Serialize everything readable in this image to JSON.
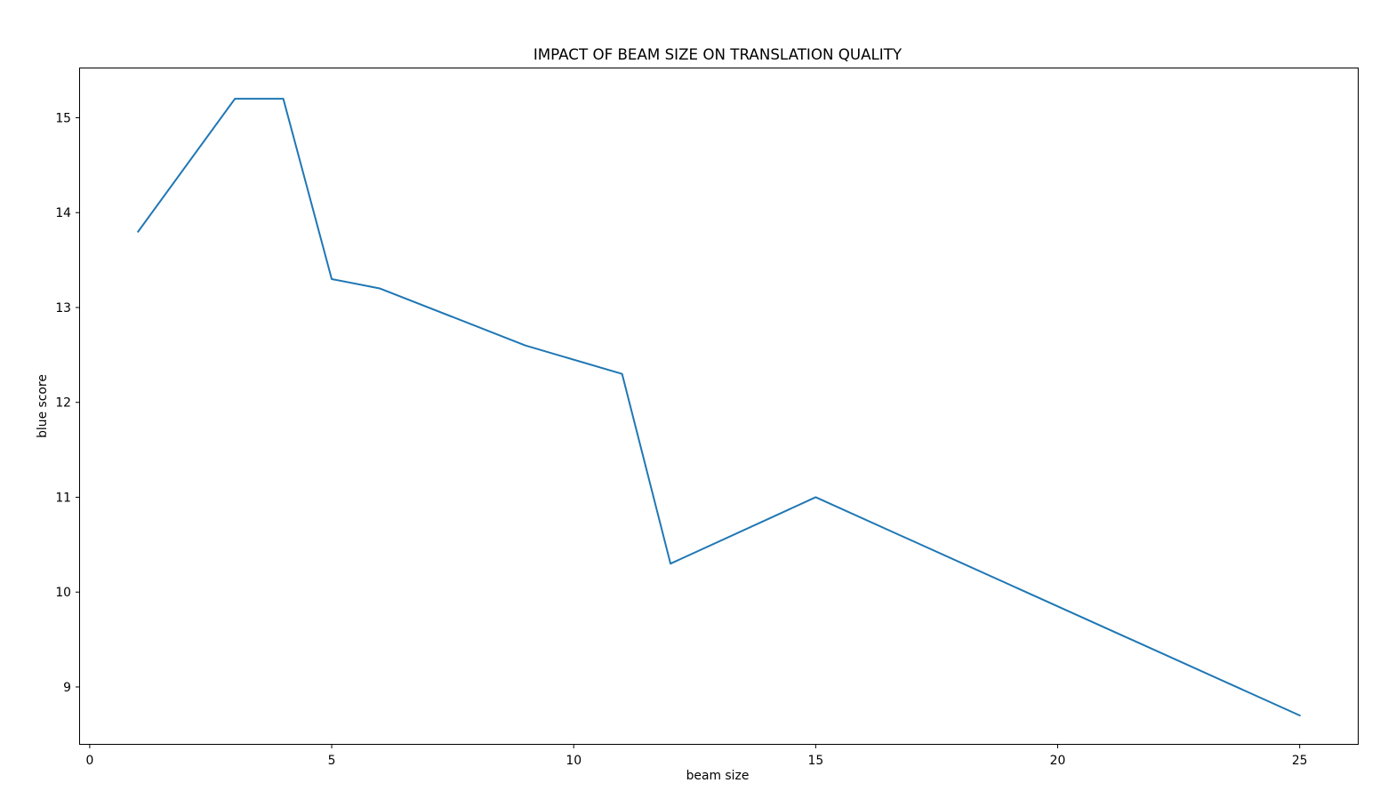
{
  "chart_data": {
    "type": "line",
    "title": "IMPACT OF BEAM SIZE ON TRANSLATION QUALITY",
    "xlabel": "beam size",
    "ylabel": "blue score",
    "xlim": [
      -0.2,
      26.2
    ],
    "ylim": [
      8.4,
      15.52
    ],
    "x_ticks": [
      0,
      5,
      10,
      15,
      20,
      25
    ],
    "y_ticks": [
      9,
      10,
      11,
      12,
      13,
      14,
      15
    ],
    "grid": false,
    "legend": "none",
    "series": [
      {
        "color": "#1f77b4",
        "x": [
          1,
          3,
          4,
          5,
          6,
          9,
          11,
          12,
          15,
          25
        ],
        "y": [
          13.8,
          15.2,
          15.2,
          13.3,
          13.2,
          12.6,
          12.3,
          10.3,
          11.0,
          8.7
        ]
      }
    ]
  }
}
